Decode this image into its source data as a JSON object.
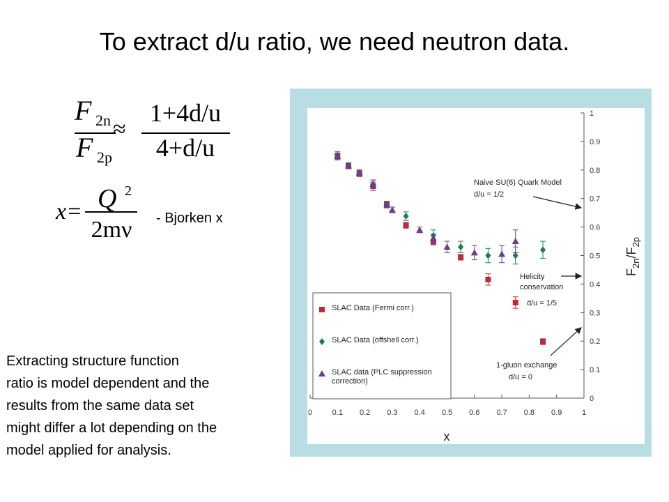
{
  "title": "To extract d/u ratio, we need neutron data.",
  "equation_ratio": {
    "lhs_num": "F",
    "lhs_num_sub": "2n",
    "lhs_den": "F",
    "lhs_den_sub": "2p",
    "approx": "≈",
    "rhs_num": "1+4d/u",
    "rhs_den": "4+d/u"
  },
  "equation_x": {
    "lhs": "x=",
    "num": "Q",
    "num_sup": "2",
    "den": "2mν",
    "note": "- Bjorken x"
  },
  "paragraph": [
    "Extracting structure function",
    "ratio is model dependent and the",
    "results from the same data set",
    "might differ a lot depending on the",
    "model applied for analysis."
  ],
  "chart_data": {
    "type": "scatter",
    "x_label": "x",
    "y_label": [
      "F",
      "2n",
      "/F",
      "2p"
    ],
    "xlim": [
      0,
      1
    ],
    "ylim": [
      0,
      1
    ],
    "xticks": [
      0,
      0.1,
      0.2,
      0.3,
      0.4,
      0.5,
      0.6,
      0.7,
      0.8,
      0.9,
      1
    ],
    "yticks": [
      0,
      0.1,
      0.2,
      0.3,
      0.4,
      0.5,
      0.6,
      0.7,
      0.8,
      0.9,
      1
    ],
    "series": [
      {
        "name": "SLAC Data (Fermi corr.)",
        "color": "#c0283c",
        "marker": "square",
        "x": [
          0.1,
          0.14,
          0.18,
          0.23,
          0.28,
          0.35,
          0.45,
          0.55,
          0.65,
          0.75,
          0.85
        ],
        "values": [
          0.848,
          0.814,
          0.787,
          0.743,
          0.677,
          0.606,
          0.548,
          0.494,
          0.416,
          0.335,
          0.198
        ],
        "errors": [
          0.01,
          0.01,
          0.01,
          0.015,
          0.01,
          0.01,
          0.01,
          0.01,
          0.02,
          0.02,
          0.01
        ]
      },
      {
        "name": "SLAC Data (offshell corr.)",
        "color": "#1e7a5a",
        "marker": "diamond",
        "x": [
          0.1,
          0.14,
          0.18,
          0.23,
          0.28,
          0.35,
          0.45,
          0.55,
          0.65,
          0.75,
          0.85
        ],
        "values": [
          0.85,
          0.815,
          0.79,
          0.75,
          0.68,
          0.638,
          0.57,
          0.53,
          0.5,
          0.5,
          0.52
        ],
        "errors": [
          0.015,
          0.01,
          0.01,
          0.015,
          0.01,
          0.015,
          0.02,
          0.02,
          0.025,
          0.03,
          0.03
        ]
      },
      {
        "name": "SLAC data (PLC suppression correction)",
        "color": "#6a3d8f",
        "marker": "triangle",
        "x": [
          0.1,
          0.14,
          0.18,
          0.23,
          0.28,
          0.3,
          0.4,
          0.45,
          0.5,
          0.6,
          0.7,
          0.75
        ],
        "values": [
          0.85,
          0.815,
          0.79,
          0.75,
          0.68,
          0.66,
          0.59,
          0.56,
          0.53,
          0.51,
          0.505,
          0.55
        ],
        "errors": [
          0.01,
          0.01,
          0.01,
          0.015,
          0.01,
          0.01,
          0.01,
          0.015,
          0.02,
          0.025,
          0.03,
          0.04
        ]
      }
    ],
    "annotations": [
      [
        "Naive SU(6) Quark Model",
        "d/u = 1/2"
      ],
      [
        "Helicity",
        "conservation",
        "d/u = 1/5"
      ],
      [
        "1-gluon exchange",
        "d/u = 0"
      ]
    ]
  }
}
